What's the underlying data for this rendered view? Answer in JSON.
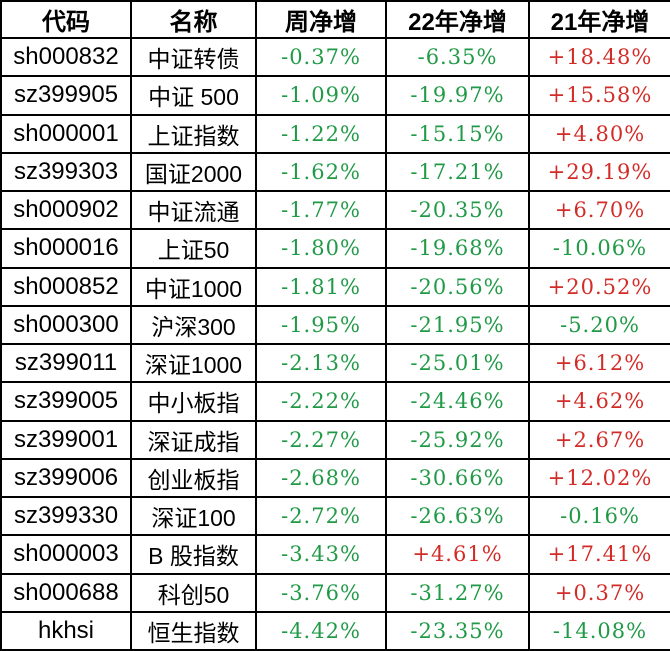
{
  "chart_data": {
    "type": "table",
    "title": "",
    "columns": [
      "代码",
      "名称",
      "周净增",
      "22年净增",
      "21年净增"
    ],
    "rows": [
      [
        "sh000832",
        "中证转债",
        "-0.37%",
        "-6.35%",
        "+18.48%"
      ],
      [
        "sz399905",
        "中证 500",
        "-1.09%",
        "-19.97%",
        "+15.58%"
      ],
      [
        "sh000001",
        "上证指数",
        "-1.22%",
        "-15.15%",
        "+4.80%"
      ],
      [
        "sz399303",
        "国证2000",
        "-1.62%",
        "-17.21%",
        "+29.19%"
      ],
      [
        "sh000902",
        "中证流通",
        "-1.77%",
        "-20.35%",
        "+6.70%"
      ],
      [
        "sh000016",
        "上证50",
        "-1.80%",
        "-19.68%",
        "-10.06%"
      ],
      [
        "sh000852",
        "中证1000",
        "-1.81%",
        "-20.56%",
        "+20.52%"
      ],
      [
        "sh000300",
        "沪深300",
        "-1.95%",
        "-21.95%",
        "-5.20%"
      ],
      [
        "sz399011",
        "深证1000",
        "-2.13%",
        "-25.01%",
        "+6.12%"
      ],
      [
        "sz399005",
        "中小板指",
        "-2.22%",
        "-24.46%",
        "+4.62%"
      ],
      [
        "sz399001",
        "深证成指",
        "-2.27%",
        "-25.92%",
        "+2.67%"
      ],
      [
        "sz399006",
        "创业板指",
        "-2.68%",
        "-30.66%",
        "+12.02%"
      ],
      [
        "sz399330",
        "深证100",
        "-2.72%",
        "-26.63%",
        "-0.16%"
      ],
      [
        "sh000003",
        "B 股指数",
        "-3.43%",
        "+4.61%",
        "+17.41%"
      ],
      [
        "sh000688",
        "科创50",
        "-3.76%",
        "-31.27%",
        "+0.37%"
      ],
      [
        "hkhsi",
        "恒生指数",
        "-4.42%",
        "-23.35%",
        "-14.08%"
      ]
    ]
  },
  "colors": {
    "positive": "#d22c28",
    "negative": "#219a47",
    "border": "#000000",
    "text": "#000000",
    "background": "#ffffff"
  }
}
